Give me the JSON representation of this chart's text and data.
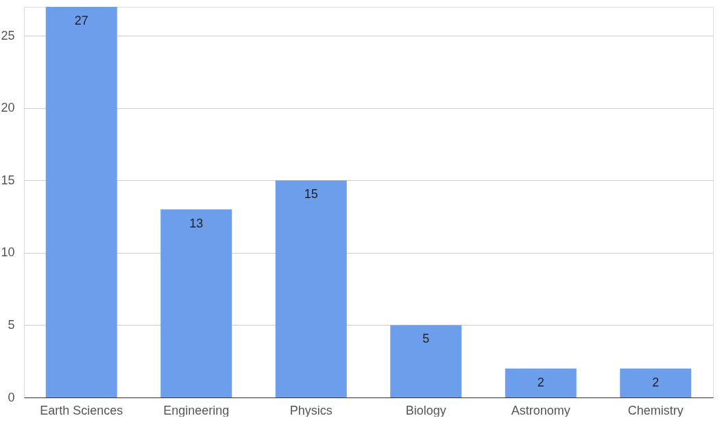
{
  "chart_data": {
    "type": "bar",
    "categories": [
      "Earth Sciences",
      "Engineering",
      "Physics",
      "Biology",
      "Astronomy",
      "Chemistry"
    ],
    "values": [
      27,
      13,
      15,
      5,
      2,
      2
    ],
    "color": "#6d9eeb",
    "ylim": [
      0,
      27
    ],
    "yticks": [
      0,
      5,
      10,
      15,
      20,
      25
    ],
    "grid": "y",
    "data_labels": true
  }
}
